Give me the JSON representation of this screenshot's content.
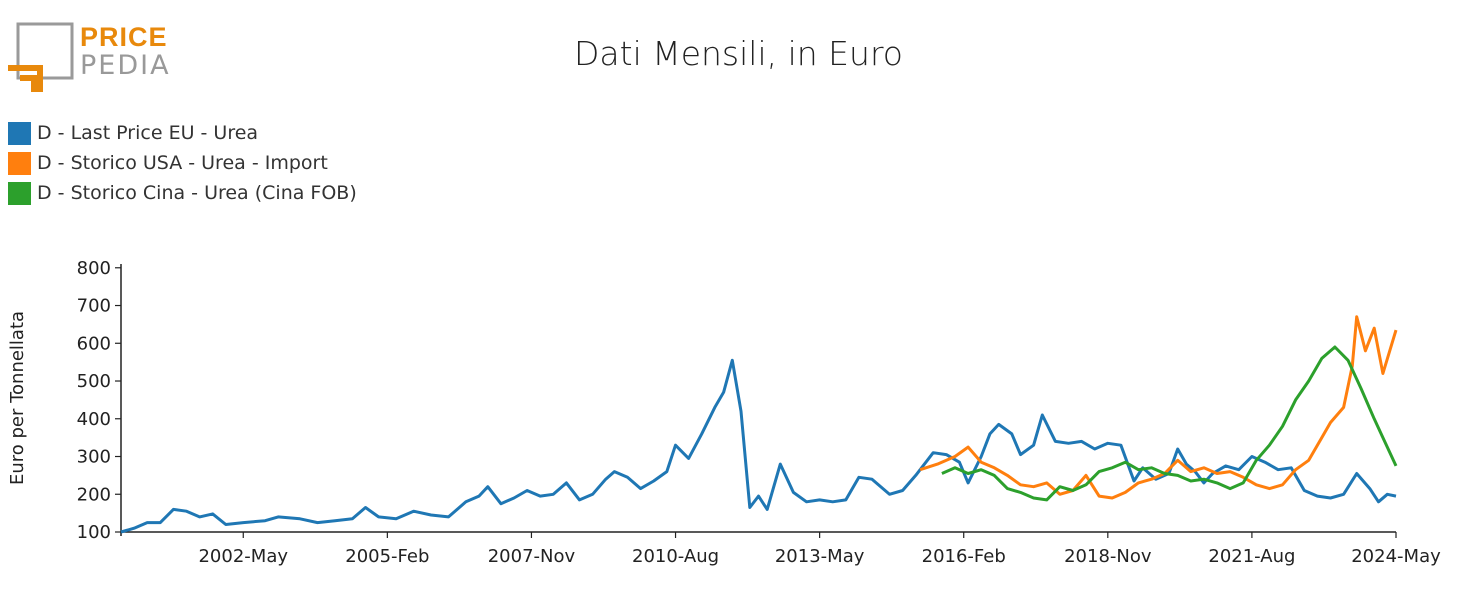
{
  "logo": {
    "line1": "PRICE",
    "line2": "PEDIA"
  },
  "title": "Dati Mensili, in Euro",
  "colors": {
    "eu": "#1f77b4",
    "usa": "#ff7f0e",
    "china": "#2ca02c",
    "logo_orange": "#e8890c",
    "logo_grey": "#9a9a9a"
  },
  "chart_data": {
    "type": "line",
    "title": "Dati Mensili, in Euro",
    "xlabel": "",
    "ylabel": "Euro per Tonnellata",
    "xlim": [
      "2000-01",
      "2024-05"
    ],
    "ylim": [
      100,
      810
    ],
    "yticks": [
      100,
      200,
      300,
      400,
      500,
      600,
      700,
      800
    ],
    "xticks": [
      "2002-May",
      "2005-Feb",
      "2007-Nov",
      "2010-Aug",
      "2013-May",
      "2016-Feb",
      "2018-Nov",
      "2021-Aug",
      "2024-May"
    ],
    "grid": false,
    "legend_position": "top-left",
    "series": [
      {
        "name": "D - Last Price EU - Urea",
        "color": "#1f77b4",
        "points": [
          [
            "2000-01",
            100
          ],
          [
            "2000-04",
            110
          ],
          [
            "2000-07",
            125
          ],
          [
            "2000-10",
            125
          ],
          [
            "2001-01",
            160
          ],
          [
            "2001-04",
            155
          ],
          [
            "2001-07",
            140
          ],
          [
            "2001-10",
            148
          ],
          [
            "2002-01",
            120
          ],
          [
            "2002-05",
            125
          ],
          [
            "2002-10",
            130
          ],
          [
            "2003-01",
            140
          ],
          [
            "2003-06",
            135
          ],
          [
            "2003-10",
            125
          ],
          [
            "2004-02",
            130
          ],
          [
            "2004-06",
            135
          ],
          [
            "2004-09",
            165
          ],
          [
            "2004-12",
            140
          ],
          [
            "2005-04",
            135
          ],
          [
            "2005-08",
            155
          ],
          [
            "2005-12",
            145
          ],
          [
            "2006-04",
            140
          ],
          [
            "2006-08",
            180
          ],
          [
            "2006-11",
            195
          ],
          [
            "2007-01",
            220
          ],
          [
            "2007-04",
            175
          ],
          [
            "2007-07",
            190
          ],
          [
            "2007-10",
            210
          ],
          [
            "2008-01",
            195
          ],
          [
            "2008-04",
            200
          ],
          [
            "2008-07",
            230
          ],
          [
            "2008-10",
            185
          ],
          [
            "2009-01",
            200
          ],
          [
            "2009-04",
            240
          ],
          [
            "2009-06",
            260
          ],
          [
            "2009-09",
            245
          ],
          [
            "2009-12",
            215
          ],
          [
            "2010-03",
            235
          ],
          [
            "2010-06",
            260
          ],
          [
            "2010-08",
            330
          ],
          [
            "2010-11",
            295
          ],
          [
            "2011-02",
            360
          ],
          [
            "2011-05",
            430
          ],
          [
            "2011-07",
            470
          ],
          [
            "2011-09",
            555
          ],
          [
            "2011-11",
            420
          ],
          [
            "2012-01",
            165
          ],
          [
            "2012-03",
            195
          ],
          [
            "2012-05",
            160
          ],
          [
            "2012-08",
            280
          ],
          [
            "2012-11",
            205
          ],
          [
            "2013-02",
            180
          ],
          [
            "2013-05",
            185
          ],
          [
            "2013-08",
            180
          ],
          [
            "2013-11",
            185
          ],
          [
            "2014-02",
            245
          ],
          [
            "2014-05",
            240
          ],
          [
            "2014-09",
            200
          ],
          [
            "2014-12",
            210
          ],
          [
            "2015-03",
            250
          ],
          [
            "2015-07",
            310
          ],
          [
            "2015-10",
            305
          ],
          [
            "2016-01",
            285
          ],
          [
            "2016-03",
            230
          ],
          [
            "2016-06",
            300
          ],
          [
            "2016-08",
            360
          ],
          [
            "2016-10",
            385
          ],
          [
            "2017-01",
            360
          ],
          [
            "2017-03",
            305
          ],
          [
            "2017-06",
            330
          ],
          [
            "2017-08",
            410
          ],
          [
            "2017-11",
            340
          ],
          [
            "2018-02",
            335
          ],
          [
            "2018-05",
            340
          ],
          [
            "2018-08",
            320
          ],
          [
            "2018-11",
            335
          ],
          [
            "2019-02",
            330
          ],
          [
            "2019-05",
            235
          ],
          [
            "2019-07",
            270
          ],
          [
            "2019-10",
            240
          ],
          [
            "2020-01",
            255
          ],
          [
            "2020-03",
            320
          ],
          [
            "2020-05",
            280
          ],
          [
            "2020-07",
            260
          ],
          [
            "2020-09",
            230
          ],
          [
            "2020-11",
            255
          ],
          [
            "2021-02",
            275
          ],
          [
            "2021-05",
            265
          ],
          [
            "2021-08",
            300
          ],
          [
            "2021-11",
            285
          ],
          [
            "2022-02",
            265
          ],
          [
            "2022-05",
            270
          ],
          [
            "2022-08",
            210
          ],
          [
            "2022-11",
            195
          ],
          [
            "2023-02",
            190
          ],
          [
            "2023-05",
            200
          ],
          [
            "2023-08",
            255
          ],
          [
            "2023-11",
            215
          ],
          [
            "2024-01",
            180
          ],
          [
            "2024-03",
            200
          ],
          [
            "2024-05",
            195
          ]
        ]
      },
      {
        "name": "D - Storico USA - Urea - Import",
        "color": "#ff7f0e",
        "points": [
          [
            "2015-04",
            265
          ],
          [
            "2015-08",
            280
          ],
          [
            "2015-12",
            300
          ],
          [
            "2016-03",
            325
          ],
          [
            "2016-06",
            285
          ],
          [
            "2016-09",
            270
          ],
          [
            "2016-12",
            250
          ],
          [
            "2017-03",
            225
          ],
          [
            "2017-06",
            220
          ],
          [
            "2017-09",
            230
          ],
          [
            "2017-12",
            200
          ],
          [
            "2018-03",
            210
          ],
          [
            "2018-06",
            250
          ],
          [
            "2018-09",
            195
          ],
          [
            "2018-12",
            190
          ],
          [
            "2019-03",
            205
          ],
          [
            "2019-06",
            230
          ],
          [
            "2019-09",
            240
          ],
          [
            "2019-12",
            255
          ],
          [
            "2020-03",
            290
          ],
          [
            "2020-06",
            260
          ],
          [
            "2020-09",
            270
          ],
          [
            "2020-12",
            255
          ],
          [
            "2021-03",
            260
          ],
          [
            "2021-06",
            245
          ],
          [
            "2021-09",
            225
          ],
          [
            "2021-12",
            215
          ],
          [
            "2022-03",
            225
          ],
          [
            "2022-06",
            265
          ],
          [
            "2022-09",
            290
          ],
          [
            "2022-12",
            350
          ],
          [
            "2023-02",
            390
          ],
          [
            "2023-05",
            430
          ],
          [
            "2023-07",
            540
          ],
          [
            "2023-08",
            670
          ],
          [
            "2023-10",
            580
          ],
          [
            "2023-12",
            640
          ],
          [
            "2024-02",
            520
          ],
          [
            "2024-05",
            635
          ]
        ]
      },
      {
        "name": "D - Storico Cina - Urea (Cina FOB)",
        "color": "#2ca02c",
        "points": [
          [
            "2015-09",
            255
          ],
          [
            "2015-12",
            270
          ],
          [
            "2016-03",
            255
          ],
          [
            "2016-06",
            265
          ],
          [
            "2016-09",
            250
          ],
          [
            "2016-12",
            215
          ],
          [
            "2017-03",
            205
          ],
          [
            "2017-06",
            190
          ],
          [
            "2017-09",
            185
          ],
          [
            "2017-12",
            220
          ],
          [
            "2018-03",
            210
          ],
          [
            "2018-06",
            225
          ],
          [
            "2018-09",
            260
          ],
          [
            "2018-12",
            270
          ],
          [
            "2019-03",
            285
          ],
          [
            "2019-06",
            265
          ],
          [
            "2019-09",
            270
          ],
          [
            "2019-12",
            255
          ],
          [
            "2020-03",
            250
          ],
          [
            "2020-06",
            235
          ],
          [
            "2020-09",
            240
          ],
          [
            "2020-12",
            230
          ],
          [
            "2021-03",
            215
          ],
          [
            "2021-06",
            230
          ],
          [
            "2021-09",
            290
          ],
          [
            "2021-12",
            330
          ],
          [
            "2022-03",
            380
          ],
          [
            "2022-06",
            450
          ],
          [
            "2022-09",
            500
          ],
          [
            "2022-12",
            560
          ],
          [
            "2023-03",
            590
          ],
          [
            "2023-06",
            555
          ],
          [
            "2023-09",
            480
          ],
          [
            "2023-12",
            400
          ],
          [
            "2024-02",
            350
          ],
          [
            "2024-05",
            275
          ]
        ]
      }
    ]
  }
}
